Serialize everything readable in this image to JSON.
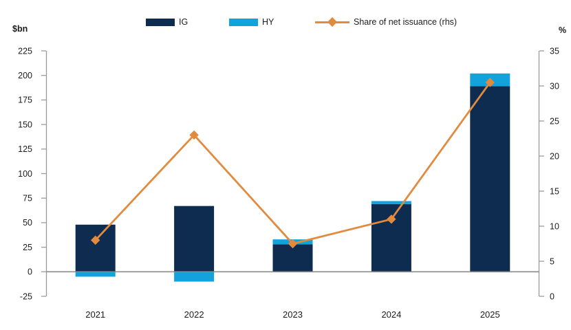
{
  "header": {
    "left_unit": "$bn",
    "right_unit": "%"
  },
  "legend": [
    {
      "label": "IG",
      "color": "#0e2c50",
      "marker": "swatch"
    },
    {
      "label": "HY",
      "color": "#12a3dd",
      "marker": "swatch"
    },
    {
      "label": "Share of net issuance (rhs)",
      "color": "#e28a3e",
      "marker": "line-diamond"
    }
  ],
  "chart_data": {
    "type": "bar",
    "subtype": "stacked-bars-with-line",
    "categories": [
      "2021",
      "2022",
      "2023",
      "2024",
      "2025"
    ],
    "series": [
      {
        "name": "IG",
        "type": "bar",
        "axis": "left",
        "color": "#0e2c50",
        "values": [
          48,
          67,
          28,
          69,
          189
        ]
      },
      {
        "name": "HY",
        "type": "bar",
        "axis": "left",
        "color": "#12a3dd",
        "values": [
          -5,
          -10,
          5,
          3,
          13
        ]
      },
      {
        "name": "Share of net issuance (rhs)",
        "type": "line",
        "axis": "right",
        "color": "#e28a3e",
        "marker": "diamond",
        "values": [
          8,
          23,
          7.5,
          11,
          30.5
        ]
      }
    ],
    "left_axis": {
      "label": "$bn",
      "min": -25,
      "max": 225,
      "step": 25,
      "ticks": [
        -25,
        0,
        25,
        50,
        75,
        100,
        125,
        150,
        175,
        200,
        225
      ]
    },
    "right_axis": {
      "label": "%",
      "min": 0,
      "max": 35,
      "step": 5,
      "ticks": [
        0,
        5,
        10,
        15,
        20,
        25,
        30,
        35
      ]
    },
    "grid": false,
    "zero_line": true,
    "legend_position": "top",
    "axis_color": "#9a9a9a",
    "zero_line_color": "#8a8a8a",
    "text_color": "#1c1c1c"
  }
}
